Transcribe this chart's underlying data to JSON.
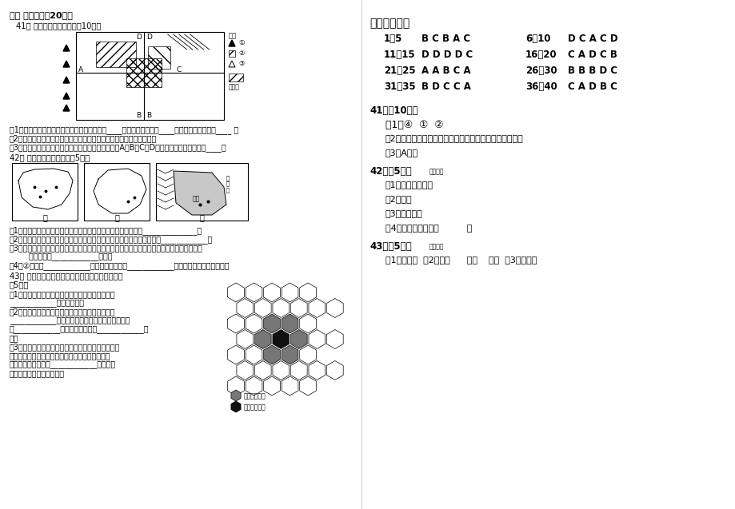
{
  "bg_color": "#ffffff",
  "title_section": "二． 综合题（共20分）",
  "q41_header": "41． 读图，回答下列问题（10分）",
  "q41_sub1": "（1）根据图例符号，属于无污染的工业图例是____，严重污染工业是____，轻度污染的工业是____ 。",
  "q41_sub2": "（2）有严重污染的工业中，有一工厂布局是不合理的，在图上圆出来。",
  "q41_sub3": "（3）为改善城市环境，拟建设一条防护林带，在图中A、B、C、D四地带中，效果最好的是____。",
  "q42_header": "42． 读下图，回答问题：（5分）",
  "q42_sub1": "（1）图中三地的农业地域类型分别是商品谷物农业，混合农业，______________。",
  "q42_sub2": "（2）两种农业地域类型的农场一般多为家庭经营的，种植的农作物中均有____________，",
  "q42_sub3": "（3）乙图所示的农业区在大分水岭的迎风面，灌溉水源成为这里发展农业的限制条件，为此，",
  "q42_sub3b": "    该国修建了____________工程。",
  "q42_sub4": "（4）②城市是____________，靠近农业地区是____________草原，该草原以牾牛为主。",
  "q43_header": "43． 读北京市商业中心分布示意图，回答下列问题",
  "q43_header2": "（5分）",
  "q43_sub1a": "（1）北京是一座历史古城，商业网点的发展体现了",
  "q43_sub1b": "____________理论的思想。",
  "q43_sub2a": "（2）北京城内的商业中心的服务范围大小可划分为",
  "q43_sub2b": "____________形，原旧城内共有七个，中间的一个",
  "q43_sub2c": "是____________中心，其余六个为____________中",
  "q43_sub2d": "心。",
  "q43_sub3a": "（3）新中国成立后，在旧城外边展加了新街道，北新",
  "q43_sub3b": "桥、菜市口、广安门、红桥等商业中心，并繁荣起",
  "q43_sub3c": "来。这说明，满足了____________理论要求",
  "q43_sub3d": "的商业中心布局是合理的。",
  "ref_title": "【参考答案】",
  "answers": [
    {
      "range": "1＇5",
      "ans": "B C B A C",
      "range2": "6＇10",
      "ans2": "D C A C D"
    },
    {
      "range": "11＇15",
      "ans": "D D D D C",
      "range2": "16＇20",
      "ans2": "C A D C B"
    },
    {
      "range": "21＇25",
      "ans": "A A B C A",
      "range2": "26＇30",
      "ans2": "B B B D C"
    },
    {
      "range": "31＇35",
      "ans": "B D C C A",
      "range2": "36＇40",
      "ans2": "C A D B C"
    }
  ],
  "a41_header": "41．（10分）",
  "a41_1": "（1）④  ①  ②",
  "a41_2": "（2）河流上游处的工厂（即图中左下角邻河处的工厂）。",
  "a41_3": "（3）A地带",
  "a42_header": "42．（5分）",
  "a42_note": "小字标注",
  "a42_1": "（1）大牧场放牧业",
  "a42_2": "（2）小麦",
  "a42_3": "（3）东水西调",
  "a42_4": "（4）布宜诺斯艾利斯          牛",
  "a43_header": "43．（5分）",
  "a43_note": "小字标注",
  "a43_ans": "（1）中心地  （2）六边      政治    商业  （3）中心地"
}
